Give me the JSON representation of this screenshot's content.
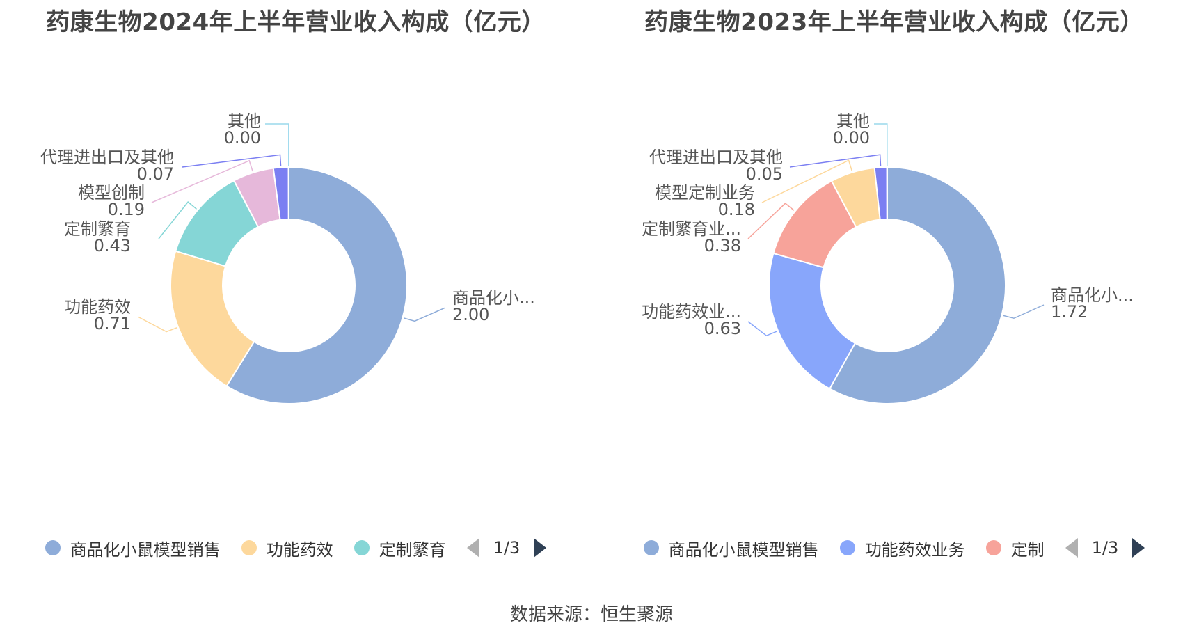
{
  "chart_data": [
    {
      "type": "pie",
      "title": "药康生物2024年上半年营业收入构成（亿元）",
      "slices": [
        {
          "name": "商品化小鼠模型销售",
          "label": "商品化小...",
          "value": 2.0,
          "display": "2.00",
          "color": "#8eacd9"
        },
        {
          "name": "功能药效",
          "label": "功能药效",
          "value": 0.71,
          "display": "0.71",
          "color": "#fdd89c"
        },
        {
          "name": "定制繁育",
          "label": "定制繁育",
          "value": 0.43,
          "display": "0.43",
          "color": "#85d6d6"
        },
        {
          "name": "模型创制",
          "label": "模型创制",
          "value": 0.19,
          "display": "0.19",
          "color": "#e6b8da"
        },
        {
          "name": "代理进出口及其他",
          "label": "代理进出口及其他",
          "value": 0.07,
          "display": "0.07",
          "color": "#7b7ff2"
        },
        {
          "name": "其他",
          "label": "其他",
          "value": 0.001,
          "display": "0.00",
          "color": "#9ad8ec"
        }
      ],
      "legend": {
        "items": [
          "商品化小鼠模型销售",
          "功能药效",
          "定制繁育"
        ],
        "colors": [
          "#8eacd9",
          "#fdd89c",
          "#85d6d6"
        ],
        "page": "1/3",
        "position": "bottom"
      }
    },
    {
      "type": "pie",
      "title": "药康生物2023年上半年营业收入构成（亿元）",
      "slices": [
        {
          "name": "商品化小鼠模型销售",
          "label": "商品化小...",
          "value": 1.72,
          "display": "1.72",
          "color": "#8eacd9"
        },
        {
          "name": "功能药效业务",
          "label": "功能药效业...",
          "value": 0.63,
          "display": "0.63",
          "color": "#88a6fb"
        },
        {
          "name": "定制繁育业务",
          "label": "定制繁育业...",
          "value": 0.38,
          "display": "0.38",
          "color": "#f7a39a"
        },
        {
          "name": "模型定制业务",
          "label": "模型定制业务",
          "value": 0.18,
          "display": "0.18",
          "color": "#fdd89c"
        },
        {
          "name": "代理进出口及其他",
          "label": "代理进出口及其他",
          "value": 0.05,
          "display": "0.05",
          "color": "#7b7ff2"
        },
        {
          "name": "其他",
          "label": "其他",
          "value": 0.001,
          "display": "0.00",
          "color": "#9ad8ec"
        }
      ],
      "legend": {
        "items": [
          "商品化小鼠模型销售",
          "功能药效业务",
          "定制"
        ],
        "colors": [
          "#8eacd9",
          "#88a6fb",
          "#f7a39a"
        ],
        "page": "1/3",
        "position": "bottom"
      }
    }
  ],
  "source": "数据来源：恒生聚源"
}
